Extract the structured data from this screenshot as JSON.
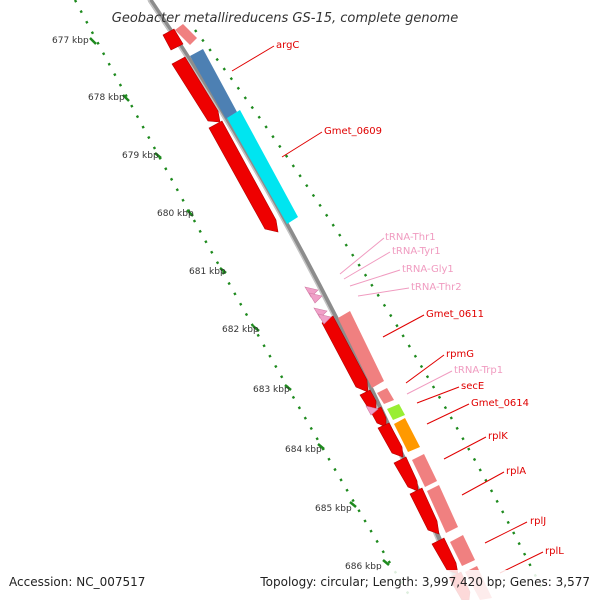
{
  "title": "Geobacter metallireducens GS-15, complete genome",
  "footer": {
    "accession": "Accession: NC_007517",
    "summary": "Topology: circular; Length: 3,997,420 bp; Genes: 3,577"
  },
  "colors": {
    "background": "#ffffff",
    "backbone": "#8c8c8c",
    "tick": "#1e8a1e",
    "gene_label": "#e00000",
    "rna_label": "#f09bc0"
  },
  "ticks": [
    {
      "label": "677 kbp"
    },
    {
      "label": "678 kbp"
    },
    {
      "label": "679 kbp"
    },
    {
      "label": "680 kbp"
    },
    {
      "label": "681 kbp"
    },
    {
      "label": "682 kbp"
    },
    {
      "label": "683 kbp"
    },
    {
      "label": "684 kbp"
    },
    {
      "label": "685 kbp"
    },
    {
      "label": "686 kbp"
    }
  ],
  "labels": [
    {
      "text": "argC",
      "kind": "gene"
    },
    {
      "text": "Gmet_0609",
      "kind": "gene"
    },
    {
      "text": "tRNA-Thr1",
      "kind": "rna"
    },
    {
      "text": "tRNA-Tyr1",
      "kind": "rna"
    },
    {
      "text": "tRNA-Gly1",
      "kind": "rna"
    },
    {
      "text": "tRNA-Thr2",
      "kind": "rna"
    },
    {
      "text": "Gmet_0611",
      "kind": "gene"
    },
    {
      "text": "rpmG",
      "kind": "gene"
    },
    {
      "text": "tRNA-Trp1",
      "kind": "rna"
    },
    {
      "text": "secE",
      "kind": "gene"
    },
    {
      "text": "Gmet_0614",
      "kind": "gene"
    },
    {
      "text": "rplK",
      "kind": "gene"
    },
    {
      "text": "rplA",
      "kind": "gene"
    },
    {
      "text": "rplJ",
      "kind": "gene"
    },
    {
      "text": "rplL",
      "kind": "gene"
    }
  ],
  "features": [
    {
      "name": "feature-argC-cog",
      "color": "#4d80b3",
      "type": "cog"
    },
    {
      "name": "feature-gmet0609-cog",
      "color": "#00e5f0",
      "type": "cog"
    },
    {
      "name": "feature-gmet0611-cog",
      "color": "#f08080",
      "type": "cog"
    },
    {
      "name": "feature-rpmG-cog",
      "color": "#f08080",
      "type": "cog"
    },
    {
      "name": "feature-secE-cog",
      "color": "#99ee33",
      "type": "cog"
    },
    {
      "name": "feature-gmet0614-cog",
      "color": "#ff9900",
      "type": "cog"
    },
    {
      "name": "feature-rplK-cog",
      "color": "#f08080",
      "type": "cog"
    },
    {
      "name": "feature-rplA-cog",
      "color": "#f08080",
      "type": "cog"
    },
    {
      "name": "feature-rplJ-cog",
      "color": "#f08080",
      "type": "cog"
    },
    {
      "name": "feature-rplL-cog",
      "color": "#f08080",
      "type": "cog"
    },
    {
      "name": "feature-prev-cog",
      "color": "#f08080",
      "type": "cog"
    },
    {
      "name": "feature-prev-cds",
      "color": "#ee0000",
      "type": "cds"
    },
    {
      "name": "feature-argC-cds",
      "color": "#ee0000",
      "type": "cds"
    },
    {
      "name": "feature-gmet0609-cds",
      "color": "#ee0000",
      "type": "cds"
    },
    {
      "name": "feature-gmet0611-cds",
      "color": "#ee0000",
      "type": "cds"
    },
    {
      "name": "feature-rpmG-cds",
      "color": "#ee0000",
      "type": "cds"
    },
    {
      "name": "feature-secE-cds",
      "color": "#ee0000",
      "type": "cds"
    },
    {
      "name": "feature-gmet0614-cds",
      "color": "#ee0000",
      "type": "cds"
    },
    {
      "name": "feature-rplK-cds",
      "color": "#ee0000",
      "type": "cds"
    },
    {
      "name": "feature-rplA-cds",
      "color": "#ee0000",
      "type": "cds"
    },
    {
      "name": "feature-rplJ-cds",
      "color": "#ee0000",
      "type": "cds"
    },
    {
      "name": "feature-rplL-cds",
      "color": "#ee0000",
      "type": "cds"
    },
    {
      "name": "feature-trna-1",
      "color": "#f0a0c8",
      "type": "rna"
    },
    {
      "name": "feature-trna-2",
      "color": "#f0a0c8",
      "type": "rna"
    },
    {
      "name": "feature-trna-3",
      "color": "#f0a0c8",
      "type": "rna"
    },
    {
      "name": "feature-trna-4",
      "color": "#f0a0c8",
      "type": "rna"
    },
    {
      "name": "feature-trna-5",
      "color": "#f0a0c8",
      "type": "rna"
    }
  ]
}
